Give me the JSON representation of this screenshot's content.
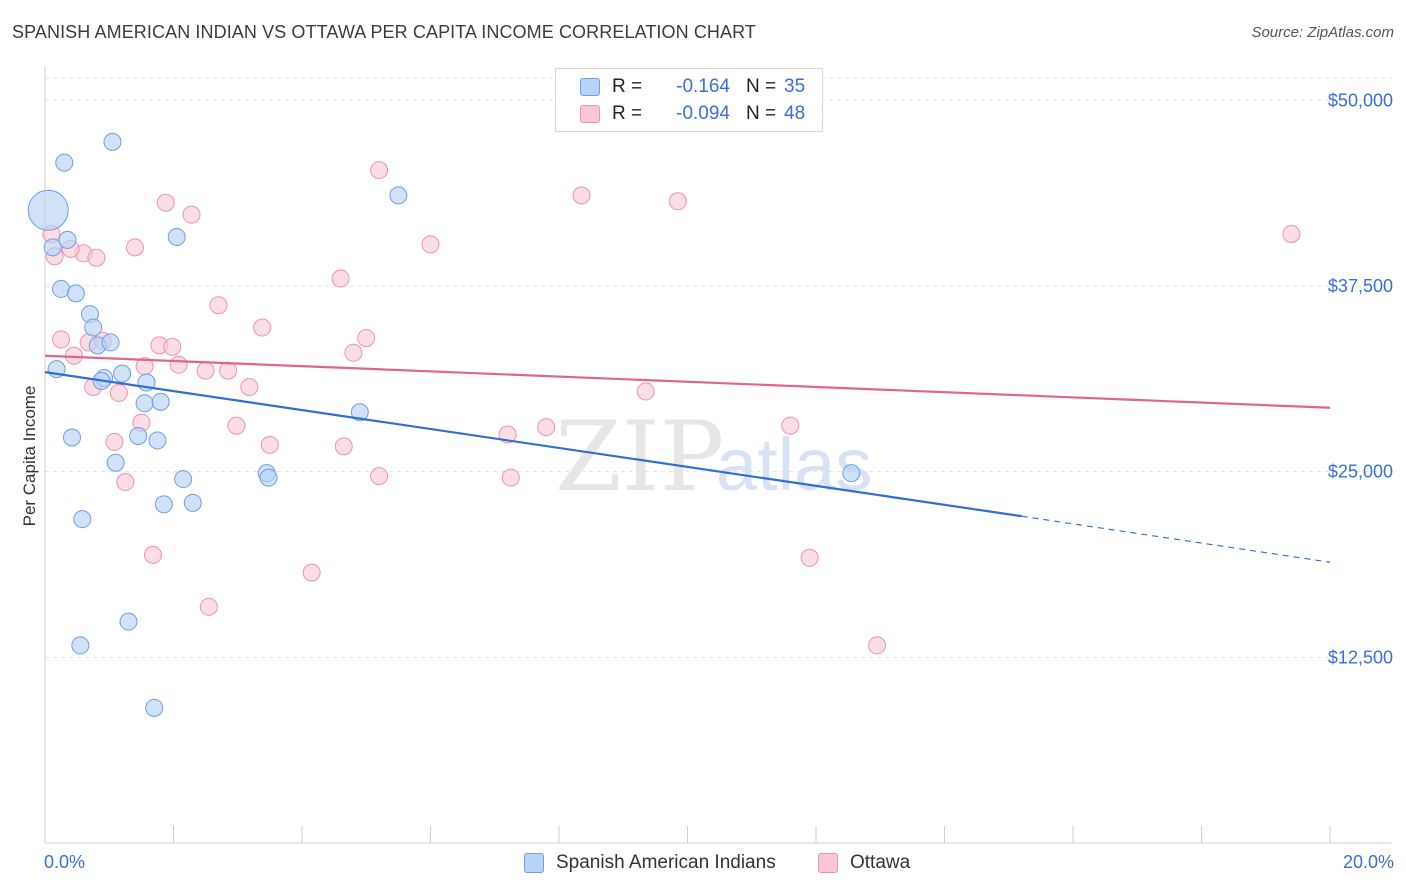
{
  "header": {
    "title": "SPANISH AMERICAN INDIAN VS OTTAWA PER CAPITA INCOME CORRELATION CHART",
    "source": "Source: ZipAtlas.com"
  },
  "watermark": {
    "zip": "ZIP",
    "atlas": "atlas"
  },
  "legend": {
    "r_label": "R =",
    "n_label": "N =",
    "series": [
      {
        "r": "-0.164",
        "n": "35"
      },
      {
        "r": "-0.094",
        "n": "48"
      }
    ]
  },
  "bottom_legend": [
    "Spanish American Indians",
    "Ottawa"
  ],
  "chart_data": {
    "type": "scatter",
    "title": "SPANISH AMERICAN INDIAN VS OTTAWA PER CAPITA INCOME CORRELATION CHART",
    "xlabel": "",
    "ylabel": "Per Capita Income",
    "xlim": [
      0,
      20
    ],
    "ylim": [
      0,
      51500
    ],
    "x_tick_labels": [
      "0.0%",
      "20.0%"
    ],
    "y_ticks": [
      12500,
      25000,
      37500,
      50000
    ],
    "y_tick_labels": [
      "$12,500",
      "$25,000",
      "$37,500",
      "$50,000"
    ],
    "grid": true,
    "colors": {
      "blue_fill": "#b8d3f5",
      "blue_stroke": "#6f9fe0",
      "blue_line": "#2f6fd1",
      "pink_fill": "#f8c6d5",
      "pink_stroke": "#ec93b0",
      "pink_line": "#e3648c",
      "tick_text": "#3a6fd8"
    },
    "series": [
      {
        "name": "Spanish American Indians",
        "points": [
          [
            0.05,
            42600
          ],
          [
            0.3,
            45800
          ],
          [
            1.05,
            47200
          ],
          [
            0.35,
            40600
          ],
          [
            0.12,
            40100
          ],
          [
            0.25,
            37300
          ],
          [
            0.48,
            37000
          ],
          [
            0.7,
            35600
          ],
          [
            0.75,
            34700
          ],
          [
            0.82,
            33500
          ],
          [
            1.02,
            33700
          ],
          [
            0.18,
            31900
          ],
          [
            0.92,
            31300
          ],
          [
            1.2,
            31600
          ],
          [
            0.88,
            31100
          ],
          [
            1.58,
            31000
          ],
          [
            1.55,
            29600
          ],
          [
            1.8,
            29700
          ],
          [
            4.9,
            29000
          ],
          [
            1.45,
            27400
          ],
          [
            0.42,
            27300
          ],
          [
            1.75,
            27100
          ],
          [
            1.1,
            25600
          ],
          [
            3.45,
            24900
          ],
          [
            3.48,
            24600
          ],
          [
            2.15,
            24500
          ],
          [
            12.55,
            24900
          ],
          [
            1.85,
            22800
          ],
          [
            2.3,
            22900
          ],
          [
            0.58,
            21800
          ],
          [
            1.3,
            14900
          ],
          [
            0.55,
            13300
          ],
          [
            1.7,
            9100
          ],
          [
            5.5,
            43600
          ],
          [
            2.05,
            40800
          ]
        ],
        "trend": {
          "x": [
            0,
            15.2
          ],
          "y": [
            31700,
            22000
          ],
          "dashed_to": [
            20,
            18900
          ]
        }
      },
      {
        "name": "Ottawa",
        "points": [
          [
            0.1,
            41000
          ],
          [
            0.15,
            39500
          ],
          [
            0.6,
            39700
          ],
          [
            0.8,
            39400
          ],
          [
            1.4,
            40100
          ],
          [
            1.88,
            43100
          ],
          [
            2.28,
            42300
          ],
          [
            5.2,
            45300
          ],
          [
            8.35,
            43600
          ],
          [
            6.0,
            40300
          ],
          [
            4.6,
            38000
          ],
          [
            19.4,
            41000
          ],
          [
            2.7,
            36200
          ],
          [
            3.38,
            34700
          ],
          [
            0.25,
            33900
          ],
          [
            0.68,
            33700
          ],
          [
            0.9,
            33800
          ],
          [
            0.45,
            32800
          ],
          [
            1.78,
            33500
          ],
          [
            1.98,
            33400
          ],
          [
            4.8,
            33000
          ],
          [
            5.0,
            34000
          ],
          [
            1.55,
            32100
          ],
          [
            2.08,
            32200
          ],
          [
            2.5,
            31800
          ],
          [
            2.85,
            31800
          ],
          [
            0.75,
            30700
          ],
          [
            1.15,
            30300
          ],
          [
            3.18,
            30700
          ],
          [
            9.35,
            30400
          ],
          [
            1.5,
            28300
          ],
          [
            2.98,
            28100
          ],
          [
            7.2,
            27500
          ],
          [
            7.8,
            28000
          ],
          [
            11.6,
            28100
          ],
          [
            1.08,
            27000
          ],
          [
            3.5,
            26800
          ],
          [
            4.65,
            26700
          ],
          [
            1.25,
            24300
          ],
          [
            5.2,
            24700
          ],
          [
            7.25,
            24600
          ],
          [
            1.68,
            19400
          ],
          [
            4.15,
            18200
          ],
          [
            11.9,
            19200
          ],
          [
            2.55,
            15900
          ],
          [
            12.95,
            13300
          ],
          [
            9.85,
            43200
          ],
          [
            0.4,
            40000
          ]
        ],
        "trend": {
          "x": [
            0,
            20
          ],
          "y": [
            32800,
            29300
          ]
        }
      }
    ]
  }
}
